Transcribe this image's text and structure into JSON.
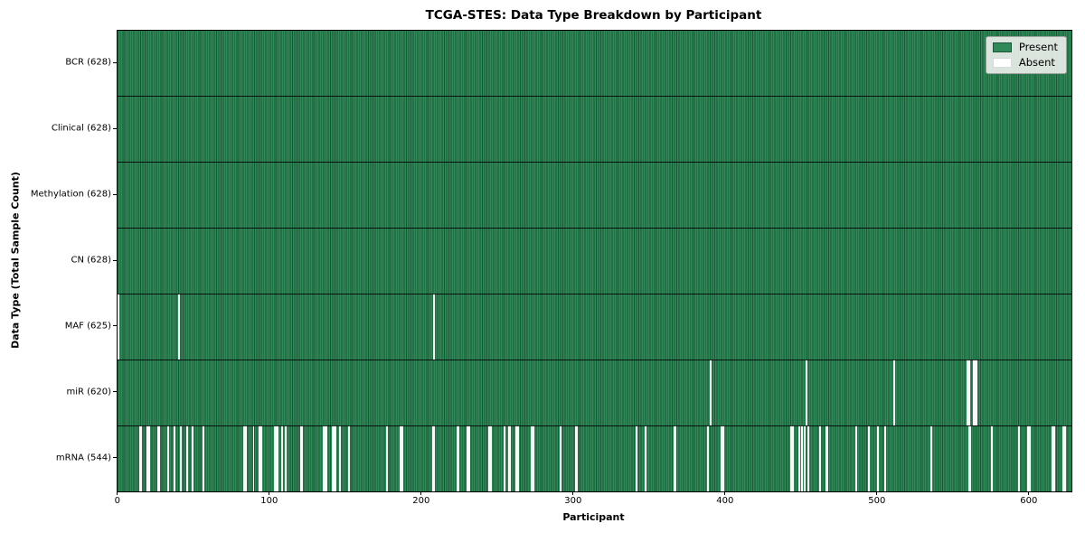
{
  "chart_data": {
    "type": "heatmap",
    "title": "TCGA-STES: Data Type Breakdown by Participant",
    "xlabel": "Participant",
    "ylabel": "Data Type (Total Sample Count)",
    "legend": {
      "present": "Present",
      "absent": "Absent"
    },
    "colors": {
      "present": "#2e8b57",
      "present_edge": "#1e5538",
      "absent": "#fafafa"
    },
    "n_participants": 628,
    "x_ticks": [
      0,
      100,
      200,
      300,
      400,
      500,
      600
    ],
    "legend_position": "upper right",
    "rows": [
      {
        "label": "BCR (628)",
        "total": 628,
        "absent": []
      },
      {
        "label": "Clinical (628)",
        "total": 628,
        "absent": []
      },
      {
        "label": "Methylation (628)",
        "total": 628,
        "absent": []
      },
      {
        "label": "CN (628)",
        "total": 628,
        "absent": []
      },
      {
        "label": "MAF (625)",
        "total": 625,
        "absent": [
          0,
          40,
          208
        ]
      },
      {
        "label": "miR (620)",
        "total": 620,
        "absent": [
          390,
          453,
          511,
          559,
          560,
          563,
          564,
          565
        ]
      },
      {
        "label": "mRNA (544)",
        "total": 544,
        "absent": [
          14,
          15,
          19,
          20,
          26,
          27,
          33,
          37,
          41,
          45,
          49,
          56,
          83,
          84,
          89,
          93,
          94,
          103,
          104,
          105,
          108,
          110,
          120,
          121,
          135,
          136,
          137,
          141,
          142,
          143,
          146,
          152,
          177,
          186,
          187,
          207,
          208,
          223,
          224,
          230,
          231,
          244,
          245,
          254,
          257,
          258,
          262,
          263,
          272,
          273,
          291,
          301,
          302,
          341,
          347,
          366,
          367,
          388,
          397,
          398,
          443,
          444,
          448,
          450,
          452,
          454,
          462,
          466,
          467,
          486,
          494,
          500,
          505,
          535,
          560,
          561,
          575,
          593,
          599,
          600,
          615,
          616,
          622,
          623
        ]
      }
    ]
  }
}
